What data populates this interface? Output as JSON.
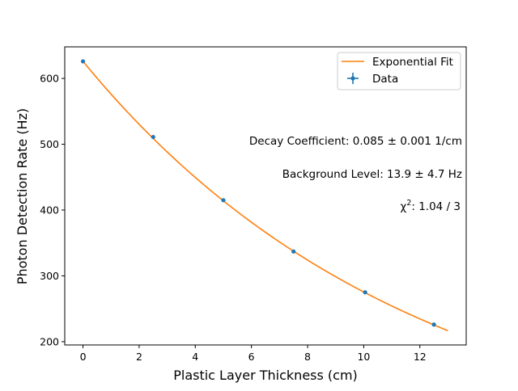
{
  "chart_data": {
    "type": "scatter",
    "title": "",
    "xlabel": "Plastic Layer Thickness (cm)",
    "ylabel": "Photon Detection Rate (Hz)",
    "xlim": [
      -0.65,
      13.65
    ],
    "ylim": [
      195,
      648
    ],
    "x_ticks": [
      0,
      2,
      4,
      6,
      8,
      10,
      12
    ],
    "y_ticks": [
      200,
      300,
      400,
      500,
      600
    ],
    "grid": false,
    "legend": {
      "placement": "top-right",
      "entries": [
        "Exponential Fit",
        "Data"
      ]
    },
    "series": [
      {
        "name": "Data",
        "kind": "errorbar-points",
        "color": "#1f77b4",
        "x": [
          0,
          2.5,
          5.0,
          7.5,
          10.05,
          12.5
        ],
        "y": [
          626,
          511,
          415,
          337,
          275,
          226
        ]
      },
      {
        "name": "Exponential Fit",
        "kind": "line",
        "color": "#ff7f0e",
        "model": {
          "amplitude": 612.1,
          "decay": 0.085,
          "background": 13.9
        },
        "x_range": [
          0,
          13
        ]
      }
    ],
    "annotations": [
      {
        "text": "Decay Coefficient: 0.085 ± 0.001 1/cm"
      },
      {
        "text": "Background Level: 13.9 ± 4.7 Hz"
      },
      {
        "text_prefix": "χ",
        "text_sup": "2",
        "text_suffix": ": 1.04  /  3"
      }
    ]
  }
}
